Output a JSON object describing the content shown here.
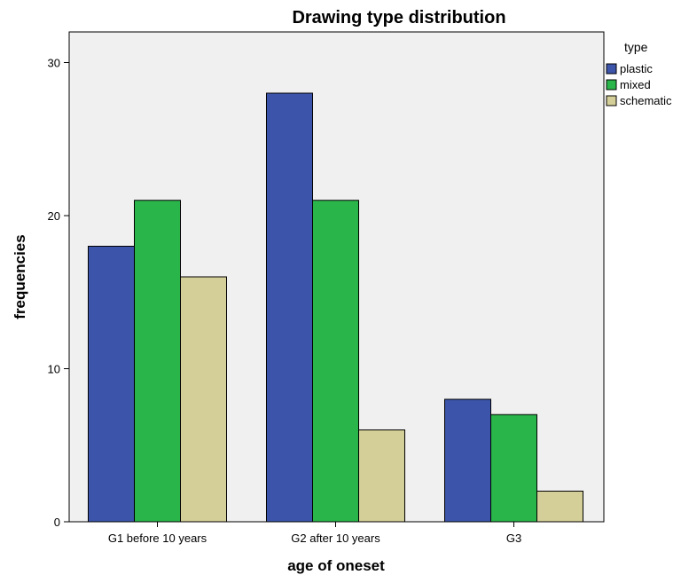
{
  "chart_data": {
    "type": "bar",
    "title": "Drawing type distribution",
    "xlabel": "age of oneset",
    "ylabel": "frequencies",
    "categories": [
      "G1 before 10 years",
      "G2 after 10 years",
      "G3"
    ],
    "series": [
      {
        "name": "plastic",
        "values": [
          18,
          28,
          8
        ],
        "color": "#3c55aa"
      },
      {
        "name": "mixed",
        "values": [
          21,
          21,
          7
        ],
        "color": "#2ab54a"
      },
      {
        "name": "schematic",
        "values": [
          16,
          6,
          2
        ],
        "color": "#d4cf98"
      }
    ],
    "ylim": [
      0,
      32
    ],
    "yticks": [
      0,
      10,
      20,
      30
    ],
    "legend_title": "type",
    "legend_position": "top-right",
    "plot_background": "#f0f0f0",
    "grid": false
  }
}
